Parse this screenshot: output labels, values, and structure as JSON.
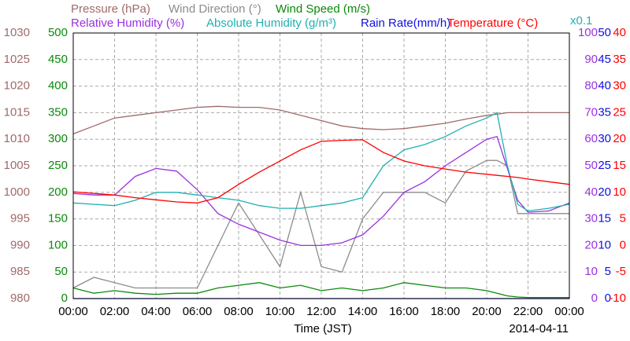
{
  "chart_data": {
    "type": "line",
    "legend_rows": [
      [
        {
          "text": "Pressure (hPa)",
          "color": "#a06a6a"
        },
        {
          "text": "Wind Direction (°)",
          "color": "#8c8c8c"
        },
        {
          "text": "Wind Speed (m/s)",
          "color": "#0a8a0a"
        }
      ],
      [
        {
          "text": "Relative Humidity (%)",
          "color": "#9b30e0"
        },
        {
          "text": "Absolute Humidity (g/m³)",
          "color": "#20b0b0"
        },
        {
          "text": "Rain Rate(mm/h)",
          "color": "#1010e0"
        },
        {
          "text": "Temperature (°C)",
          "color": "#ff0000"
        }
      ]
    ],
    "scale_note": "x0.1",
    "scale_note_color": "#20b0b0",
    "xlabel": "Time (JST)",
    "date": "2014-04-11",
    "xlim": [
      0,
      24
    ],
    "xticks": [
      {
        "value": 0,
        "label": "00:00"
      },
      {
        "value": 2,
        "label": "02:00"
      },
      {
        "value": 4,
        "label": "04:00"
      },
      {
        "value": 6,
        "label": "06:00"
      },
      {
        "value": 8,
        "label": "08:00"
      },
      {
        "value": 10,
        "label": "10:00"
      },
      {
        "value": 12,
        "label": "12:00"
      },
      {
        "value": 14,
        "label": "14:00"
      },
      {
        "value": 16,
        "label": "16:00"
      },
      {
        "value": 18,
        "label": "18:00"
      },
      {
        "value": 20,
        "label": "20:00"
      },
      {
        "value": 22,
        "label": "22:00"
      },
      {
        "value": 24,
        "label": "00:00"
      }
    ],
    "grid": true,
    "axes": [
      {
        "side": "left",
        "color": "#a06a6a",
        "lim": [
          980,
          1030
        ],
        "ticks": [
          980,
          985,
          990,
          995,
          1000,
          1005,
          1010,
          1015,
          1020,
          1025,
          1030
        ]
      },
      {
        "side": "left",
        "color": "#0a8a0a",
        "lim": [
          0,
          500
        ],
        "ticks": [
          0,
          50,
          100,
          150,
          200,
          250,
          300,
          350,
          400,
          450,
          500
        ]
      },
      {
        "side": "right",
        "color": "#9b30e0",
        "lim": [
          0,
          100
        ],
        "ticks": [
          0,
          10,
          20,
          30,
          40,
          50,
          60,
          70,
          80,
          90,
          100
        ]
      },
      {
        "side": "right",
        "color": "#1010e0",
        "lim": [
          0,
          50
        ],
        "ticks": [
          0,
          5,
          10,
          15,
          20,
          25,
          30,
          35,
          40,
          45,
          50
        ]
      },
      {
        "side": "right",
        "color": "#ff0000",
        "lim": [
          -10,
          40
        ],
        "ticks": [
          -10,
          -5,
          0,
          5,
          10,
          15,
          20,
          25,
          30,
          35,
          40
        ]
      }
    ],
    "x": [
      0,
      1,
      2,
      3,
      4,
      5,
      6,
      7,
      8,
      9,
      10,
      11,
      12,
      13,
      14,
      15,
      16,
      17,
      18,
      19,
      20,
      20.5,
      21,
      21.5,
      22,
      23,
      24
    ],
    "series": [
      {
        "name": "Wind Direction (°)",
        "color": "#8c8c8c",
        "axis": 1,
        "values": [
          20,
          40,
          30,
          20,
          20,
          20,
          20,
          100,
          180,
          120,
          60,
          200,
          60,
          50,
          150,
          200,
          200,
          200,
          180,
          240,
          260,
          260,
          250,
          160,
          160,
          160,
          160
        ]
      },
      {
        "name": "Wind Speed (m/s)",
        "color": "#0a8a0a",
        "axis": 1,
        "values": [
          20,
          10,
          15,
          10,
          8,
          10,
          10,
          20,
          25,
          30,
          20,
          25,
          15,
          20,
          15,
          20,
          30,
          25,
          20,
          20,
          15,
          10,
          5,
          3,
          2,
          2,
          2
        ]
      },
      {
        "name": "Rain Rate(mm/h)",
        "color": "#1010e0",
        "axis": 3,
        "values": [
          0,
          0,
          0,
          0,
          0,
          0,
          0,
          0,
          0,
          0,
          0,
          0,
          0,
          0,
          0,
          0,
          0,
          0,
          0,
          0,
          0,
          0,
          0,
          0,
          0,
          0,
          0
        ]
      },
      {
        "name": "Pressure (hPa)",
        "color": "#a06a6a",
        "axis": 0,
        "values": [
          1011,
          1012.5,
          1014,
          1014.5,
          1015,
          1015.5,
          1016,
          1016.2,
          1016,
          1016,
          1015.5,
          1014.5,
          1013.5,
          1012.5,
          1012,
          1011.8,
          1012,
          1012.5,
          1013,
          1013.8,
          1014.5,
          1014.7,
          1015,
          1015,
          1015,
          1015,
          1015
        ]
      },
      {
        "name": "Relative Humidity (%)",
        "color": "#9b30e0",
        "axis": 2,
        "values": [
          39.6,
          39,
          39,
          46,
          49,
          48,
          41,
          32,
          28,
          25,
          22,
          20,
          20,
          21,
          24,
          31,
          40,
          44,
          50,
          55,
          60,
          61,
          49,
          37,
          32.5,
          33,
          36
        ]
      },
      {
        "name": "Absolute Humidity (g/m³)",
        "color": "#20b0b0",
        "axis": 2,
        "values": [
          36,
          35.5,
          35,
          37,
          40,
          40,
          39,
          38,
          37,
          35,
          34,
          34,
          35,
          36,
          38,
          50,
          56,
          58,
          61,
          65,
          68,
          70,
          50,
          35.5,
          33,
          34,
          35.5
        ]
      },
      {
        "name": "Temperature (°C)",
        "color": "#ff0000",
        "axis": 4,
        "values": [
          10.1,
          9.8,
          9.5,
          9,
          8.6,
          8.2,
          8,
          9,
          11.5,
          13.8,
          15.9,
          18,
          19.6,
          19.8,
          19.9,
          17.5,
          15.9,
          15,
          14.4,
          13.8,
          13.4,
          13.2,
          13,
          12.8,
          12.5,
          12,
          11.5
        ]
      }
    ]
  }
}
